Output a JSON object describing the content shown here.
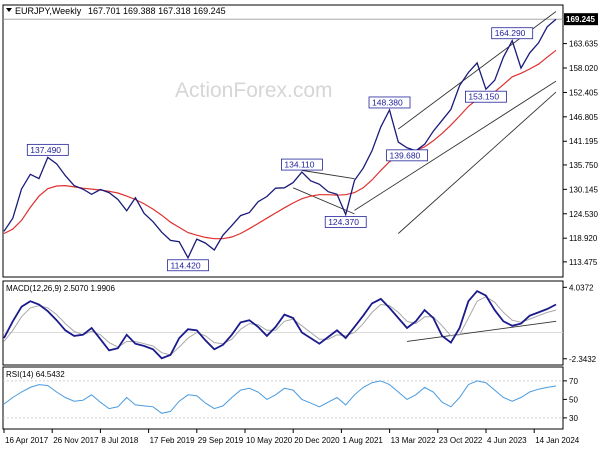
{
  "chart_data": {
    "type": "line",
    "header": {
      "symbol_label": "EURJPY,Weekly",
      "ohlc": "167.701 169.388 167.318 169.245"
    },
    "watermark": "ActionForex.com",
    "price": {
      "ylim": [
        110,
        172.5
      ],
      "yticks": [
        "163.635",
        "158.020",
        "152.405",
        "146.805",
        "141.195",
        "135.750",
        "130.145",
        "124.530",
        "118.920",
        "113.475"
      ],
      "last_price": "169.245",
      "reference_level": 169.245,
      "series": [
        {
          "name": "price",
          "values": [
            120.5,
            123.5,
            130.2,
            133.6,
            132.6,
            137.49,
            136.0,
            133.3,
            131.0,
            130.2,
            129.0,
            130.1,
            129.4,
            127.8,
            125.2,
            128.2,
            124.6,
            122.7,
            120.3,
            118.4,
            118.1,
            114.42,
            118.7,
            117.8,
            116.2,
            119.6,
            121.8,
            124.1,
            124.8,
            127.3,
            128.5,
            130.4,
            130.5,
            131.7,
            134.11,
            132.1,
            131.3,
            129.6,
            129.0,
            124.37,
            132.2,
            135.0,
            139.0,
            144.5,
            148.38,
            141.0,
            139.68,
            139.0,
            140.5,
            143.5,
            146.0,
            148.5,
            154.0,
            157.0,
            159.2,
            153.15,
            155.2,
            160.5,
            164.29,
            158.0,
            161.5,
            163.8,
            167.5,
            169.245
          ]
        },
        {
          "name": "moving-average",
          "values": [
            120.0,
            121.0,
            123.0,
            126.0,
            128.6,
            130.3,
            130.9,
            131.0,
            130.7,
            130.4,
            130.2,
            130.0,
            129.7,
            129.3,
            128.6,
            127.8,
            126.8,
            125.6,
            124.2,
            122.6,
            121.4,
            120.2,
            119.6,
            119.1,
            118.8,
            118.8,
            119.2,
            120.0,
            121.1,
            122.3,
            123.5,
            124.7,
            125.9,
            127.0,
            128.0,
            128.6,
            128.9,
            128.9,
            128.8,
            128.9,
            129.4,
            130.5,
            132.3,
            134.5,
            136.5,
            137.8,
            138.6,
            139.1,
            139.9,
            141.3,
            143.0,
            144.9,
            147.0,
            149.2,
            150.8,
            151.6,
            152.5,
            154.2,
            156.0,
            156.8,
            157.8,
            158.9,
            160.5,
            162.1
          ]
        }
      ],
      "annotations": [
        {
          "text": "137.490",
          "index": 5,
          "value": 137.49,
          "side": "above"
        },
        {
          "text": "114.420",
          "index": 21,
          "value": 114.42,
          "side": "below"
        },
        {
          "text": "134.110",
          "index": 34,
          "value": 134.11,
          "side": "above"
        },
        {
          "text": "124.370",
          "index": 39,
          "value": 124.37,
          "side": "below"
        },
        {
          "text": "148.380",
          "index": 44,
          "value": 148.38,
          "side": "above"
        },
        {
          "text": "139.680",
          "index": 46,
          "value": 139.68,
          "side": "below"
        },
        {
          "text": "164.290",
          "index": 58,
          "value": 164.29,
          "side": "above"
        },
        {
          "text": "153.150",
          "index": 55,
          "value": 153.15,
          "side": "below"
        }
      ],
      "trendlines": [
        {
          "from": [
            34,
            134.5
          ],
          "to": [
            40,
            132.6
          ]
        },
        {
          "from": [
            33,
            130.5
          ],
          "to": [
            40,
            124.5
          ]
        },
        {
          "from": [
            45,
            144.0
          ],
          "to": [
            63,
            171.0
          ]
        },
        {
          "from": [
            40,
            125.3
          ],
          "to": [
            63,
            155.0
          ]
        },
        {
          "from": [
            45,
            120.0
          ],
          "to": [
            63,
            152.5
          ]
        }
      ]
    },
    "macd": {
      "label": "MACD(12,26,9) 2.5070 1.9906",
      "ylim": [
        -2.9,
        4.6
      ],
      "yticks": [
        "4.0372",
        "-2.3432"
      ],
      "zero_line": 0,
      "series": [
        {
          "name": "macd",
          "values": [
            -0.5,
            1.0,
            2.3,
            2.8,
            2.5,
            1.9,
            1.1,
            0.2,
            -0.3,
            -0.2,
            0.4,
            -0.6,
            -1.6,
            -1.4,
            -0.2,
            -1.0,
            -1.2,
            -1.5,
            -2.3,
            -2.0,
            -0.5,
            0.3,
            0.2,
            -0.7,
            -1.5,
            -1.1,
            -0.2,
            0.9,
            1.1,
            0.5,
            -0.3,
            0.5,
            1.6,
            1.3,
            0.0,
            -0.5,
            -1.0,
            -0.4,
            0.2,
            -0.5,
            0.5,
            1.5,
            2.6,
            3.0,
            2.2,
            1.3,
            0.4,
            1.0,
            2.0,
            1.3,
            -0.3,
            -0.9,
            0.4,
            2.8,
            3.7,
            3.3,
            2.0,
            1.0,
            0.6,
            0.8,
            1.5,
            1.8,
            2.1,
            2.5
          ]
        },
        {
          "name": "signal",
          "values": [
            -0.8,
            0.2,
            1.4,
            2.2,
            2.4,
            2.2,
            1.6,
            0.8,
            0.1,
            -0.2,
            0.1,
            -0.2,
            -0.9,
            -1.3,
            -0.8,
            -0.8,
            -1.0,
            -1.2,
            -1.8,
            -2.0,
            -1.3,
            -0.5,
            0.0,
            -0.3,
            -0.9,
            -1.0,
            -0.6,
            0.3,
            0.8,
            0.7,
            0.2,
            0.2,
            1.0,
            1.2,
            0.6,
            0.0,
            -0.6,
            -0.6,
            -0.2,
            -0.3,
            0.0,
            0.8,
            1.8,
            2.5,
            2.4,
            1.8,
            1.0,
            0.8,
            1.4,
            1.4,
            0.6,
            -0.3,
            -0.2,
            1.3,
            2.8,
            3.2,
            2.7,
            1.8,
            1.1,
            0.9,
            1.2,
            1.5,
            1.8,
            2.0
          ]
        }
      ],
      "trendline": {
        "from": [
          46,
          -0.8
        ],
        "to": [
          63,
          1.0
        ]
      }
    },
    "rsi": {
      "label": "RSI(14) 64.5432",
      "ylim": [
        18,
        85
      ],
      "yticks": [
        "70",
        "50",
        "30"
      ],
      "level_lines": [
        70,
        30
      ],
      "series": [
        {
          "name": "rsi",
          "values": [
            45,
            52,
            58,
            63,
            66,
            65,
            58,
            52,
            48,
            49,
            55,
            47,
            40,
            42,
            52,
            44,
            43,
            42,
            35,
            37,
            48,
            55,
            54,
            46,
            40,
            43,
            52,
            60,
            62,
            58,
            50,
            55,
            62,
            60,
            50,
            46,
            42,
            47,
            52,
            44,
            55,
            63,
            68,
            70,
            66,
            58,
            50,
            55,
            63,
            58,
            47,
            42,
            52,
            66,
            70,
            68,
            60,
            52,
            48,
            52,
            58,
            61,
            63,
            64.5
          ]
        }
      ]
    },
    "x_axis": {
      "tick_labels": [
        "16 Apr 2017",
        "26 Nov 2017",
        "8 Jul 2018",
        "17 Feb 2019",
        "29 Sep 2019",
        "10 May 2020",
        "20 Dec 2020",
        "1 Aug 2021",
        "13 Mar 2022",
        "23 Oct 2022",
        "4 Jun 2023",
        "14 Jan 2024"
      ]
    },
    "colors": {
      "price_line": "#1a1a7a",
      "moving_average": "#e03030",
      "macd_line": "#1a1a8c",
      "signal_line": "#a8a8a8",
      "rsi_line": "#4a9be0",
      "trendline": "#333333",
      "annotation_text": "#22229a",
      "annotation_border": "#22229a",
      "axis_label_box": "#000000"
    }
  }
}
